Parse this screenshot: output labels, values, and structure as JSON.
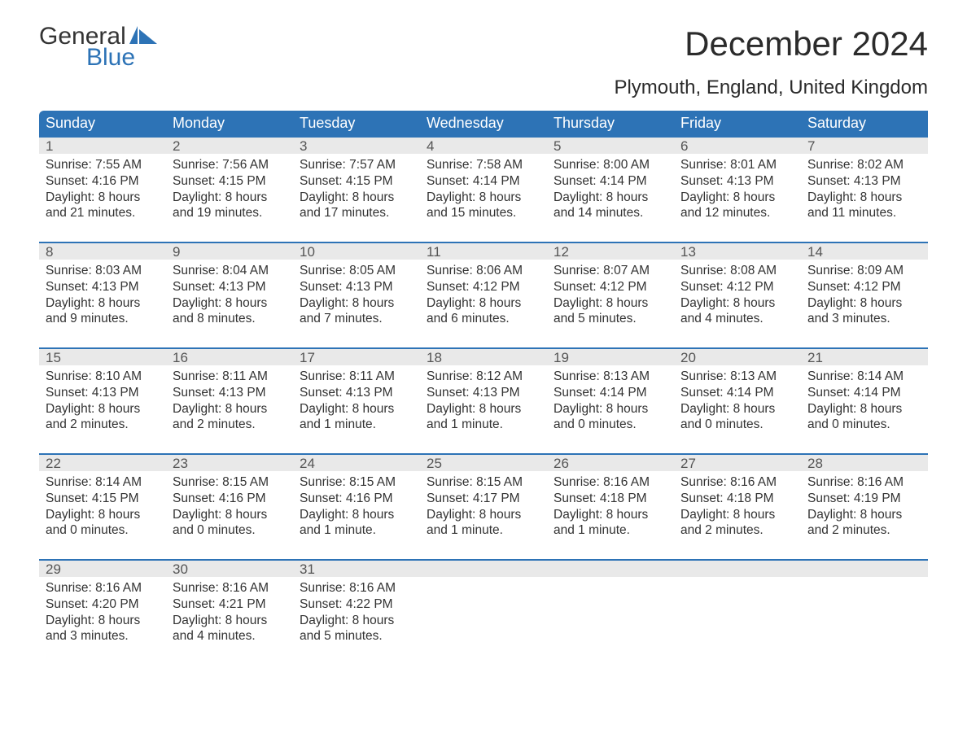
{
  "logo": {
    "text1": "General",
    "text2": "Blue",
    "brand_color": "#2d73b6"
  },
  "title": "December 2024",
  "subtitle": "Plymouth, England, United Kingdom",
  "colors": {
    "header_bg": "#2d73b6",
    "header_text": "#ffffff",
    "daynum_bg": "#e9e9e9",
    "daynum_border": "#2d73b6",
    "body_text": "#333333",
    "page_bg": "#ffffff"
  },
  "dow": [
    "Sunday",
    "Monday",
    "Tuesday",
    "Wednesday",
    "Thursday",
    "Friday",
    "Saturday"
  ],
  "weeks": [
    [
      {
        "n": "1",
        "sunrise": "7:55 AM",
        "sunset": "4:16 PM",
        "daylight": "8 hours and 21 minutes."
      },
      {
        "n": "2",
        "sunrise": "7:56 AM",
        "sunset": "4:15 PM",
        "daylight": "8 hours and 19 minutes."
      },
      {
        "n": "3",
        "sunrise": "7:57 AM",
        "sunset": "4:15 PM",
        "daylight": "8 hours and 17 minutes."
      },
      {
        "n": "4",
        "sunrise": "7:58 AM",
        "sunset": "4:14 PM",
        "daylight": "8 hours and 15 minutes."
      },
      {
        "n": "5",
        "sunrise": "8:00 AM",
        "sunset": "4:14 PM",
        "daylight": "8 hours and 14 minutes."
      },
      {
        "n": "6",
        "sunrise": "8:01 AM",
        "sunset": "4:13 PM",
        "daylight": "8 hours and 12 minutes."
      },
      {
        "n": "7",
        "sunrise": "8:02 AM",
        "sunset": "4:13 PM",
        "daylight": "8 hours and 11 minutes."
      }
    ],
    [
      {
        "n": "8",
        "sunrise": "8:03 AM",
        "sunset": "4:13 PM",
        "daylight": "8 hours and 9 minutes."
      },
      {
        "n": "9",
        "sunrise": "8:04 AM",
        "sunset": "4:13 PM",
        "daylight": "8 hours and 8 minutes."
      },
      {
        "n": "10",
        "sunrise": "8:05 AM",
        "sunset": "4:13 PM",
        "daylight": "8 hours and 7 minutes."
      },
      {
        "n": "11",
        "sunrise": "8:06 AM",
        "sunset": "4:12 PM",
        "daylight": "8 hours and 6 minutes."
      },
      {
        "n": "12",
        "sunrise": "8:07 AM",
        "sunset": "4:12 PM",
        "daylight": "8 hours and 5 minutes."
      },
      {
        "n": "13",
        "sunrise": "8:08 AM",
        "sunset": "4:12 PM",
        "daylight": "8 hours and 4 minutes."
      },
      {
        "n": "14",
        "sunrise": "8:09 AM",
        "sunset": "4:12 PM",
        "daylight": "8 hours and 3 minutes."
      }
    ],
    [
      {
        "n": "15",
        "sunrise": "8:10 AM",
        "sunset": "4:13 PM",
        "daylight": "8 hours and 2 minutes."
      },
      {
        "n": "16",
        "sunrise": "8:11 AM",
        "sunset": "4:13 PM",
        "daylight": "8 hours and 2 minutes."
      },
      {
        "n": "17",
        "sunrise": "8:11 AM",
        "sunset": "4:13 PM",
        "daylight": "8 hours and 1 minute."
      },
      {
        "n": "18",
        "sunrise": "8:12 AM",
        "sunset": "4:13 PM",
        "daylight": "8 hours and 1 minute."
      },
      {
        "n": "19",
        "sunrise": "8:13 AM",
        "sunset": "4:14 PM",
        "daylight": "8 hours and 0 minutes."
      },
      {
        "n": "20",
        "sunrise": "8:13 AM",
        "sunset": "4:14 PM",
        "daylight": "8 hours and 0 minutes."
      },
      {
        "n": "21",
        "sunrise": "8:14 AM",
        "sunset": "4:14 PM",
        "daylight": "8 hours and 0 minutes."
      }
    ],
    [
      {
        "n": "22",
        "sunrise": "8:14 AM",
        "sunset": "4:15 PM",
        "daylight": "8 hours and 0 minutes."
      },
      {
        "n": "23",
        "sunrise": "8:15 AM",
        "sunset": "4:16 PM",
        "daylight": "8 hours and 0 minutes."
      },
      {
        "n": "24",
        "sunrise": "8:15 AM",
        "sunset": "4:16 PM",
        "daylight": "8 hours and 1 minute."
      },
      {
        "n": "25",
        "sunrise": "8:15 AM",
        "sunset": "4:17 PM",
        "daylight": "8 hours and 1 minute."
      },
      {
        "n": "26",
        "sunrise": "8:16 AM",
        "sunset": "4:18 PM",
        "daylight": "8 hours and 1 minute."
      },
      {
        "n": "27",
        "sunrise": "8:16 AM",
        "sunset": "4:18 PM",
        "daylight": "8 hours and 2 minutes."
      },
      {
        "n": "28",
        "sunrise": "8:16 AM",
        "sunset": "4:19 PM",
        "daylight": "8 hours and 2 minutes."
      }
    ],
    [
      {
        "n": "29",
        "sunrise": "8:16 AM",
        "sunset": "4:20 PM",
        "daylight": "8 hours and 3 minutes."
      },
      {
        "n": "30",
        "sunrise": "8:16 AM",
        "sunset": "4:21 PM",
        "daylight": "8 hours and 4 minutes."
      },
      {
        "n": "31",
        "sunrise": "8:16 AM",
        "sunset": "4:22 PM",
        "daylight": "8 hours and 5 minutes."
      },
      null,
      null,
      null,
      null
    ]
  ],
  "labels": {
    "sunrise": "Sunrise:",
    "sunset": "Sunset:",
    "daylight": "Daylight:"
  }
}
